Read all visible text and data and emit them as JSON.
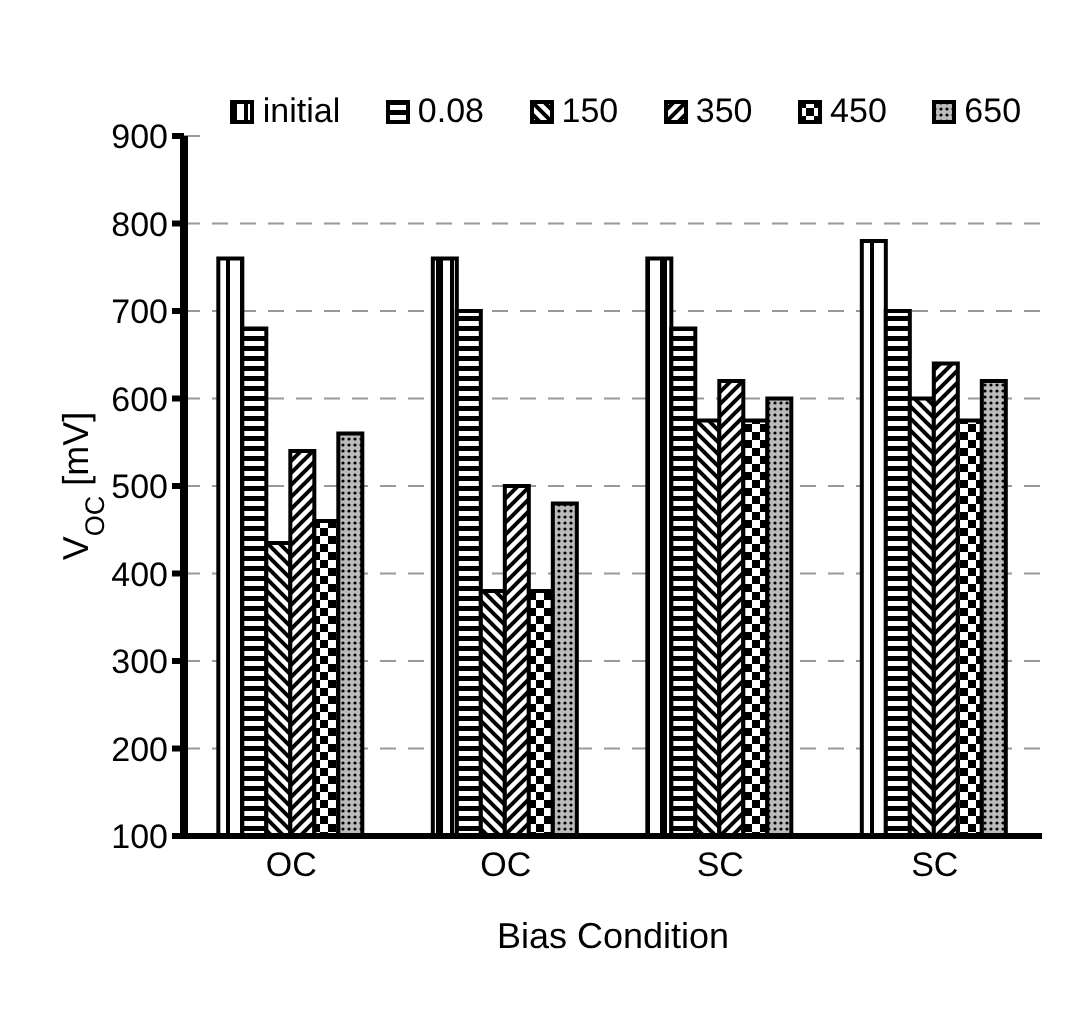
{
  "chart_data": {
    "type": "bar",
    "xlabel": "Bias Condition",
    "ylabel": "V$_{OC}$ [mV]",
    "categories": [
      "OC",
      "OC",
      "SC",
      "SC"
    ],
    "series": [
      {
        "name": "initial",
        "color": "#000000",
        "values": [
          760,
          760,
          760,
          780
        ]
      },
      {
        "name": "0.08",
        "color": "#000000",
        "values": [
          680,
          700,
          680,
          700
        ]
      },
      {
        "name": "150",
        "color": "#000000",
        "values": [
          435,
          380,
          575,
          600
        ]
      },
      {
        "name": "350",
        "color": "#000000",
        "values": [
          540,
          500,
          620,
          640
        ]
      },
      {
        "name": "450",
        "color": "#000000",
        "values": [
          460,
          380,
          575,
          575
        ]
      },
      {
        "name": "650",
        "color": "#000000",
        "values": [
          560,
          480,
          600,
          620
        ]
      }
    ],
    "ylim": [
      100,
      900
    ],
    "yticks": [
      100,
      200,
      300,
      400,
      500,
      600,
      700,
      800,
      900
    ],
    "grid": "y",
    "legend": "top"
  }
}
